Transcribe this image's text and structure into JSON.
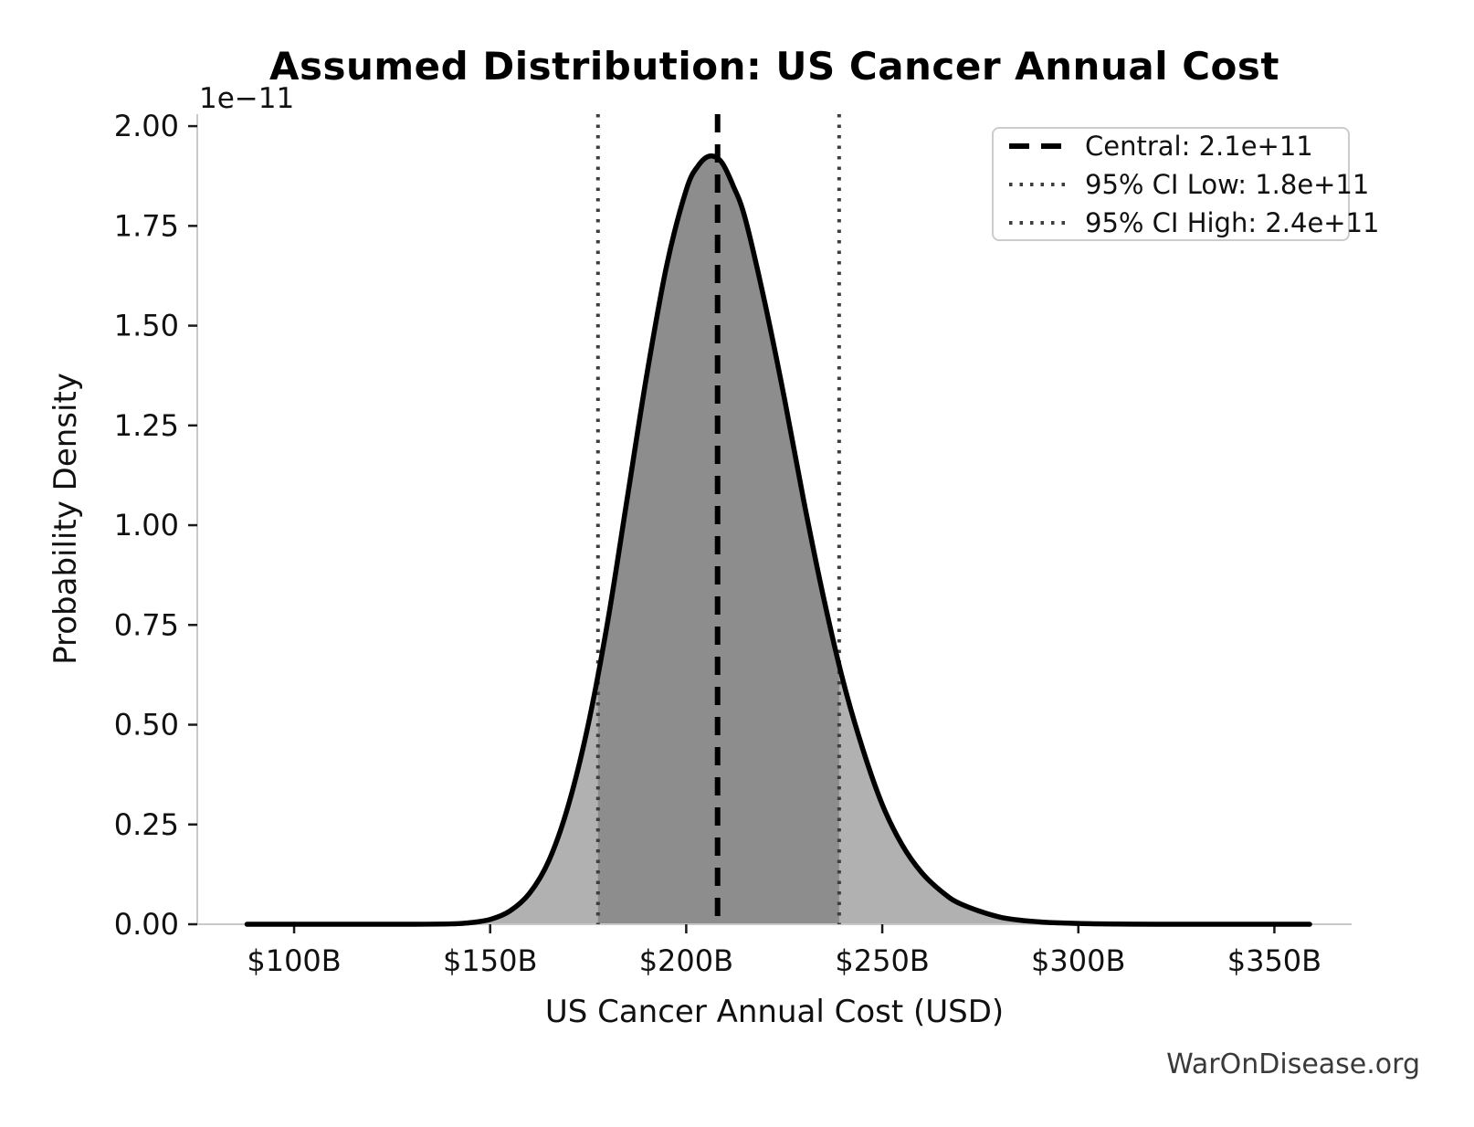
{
  "title": "Assumed Distribution: US Cancer Annual Cost",
  "watermark": "WarOnDisease.org",
  "axes": {
    "x_label": "US Cancer Annual Cost (USD)",
    "y_label": "Probability Density",
    "y_offset_text": "1e−11",
    "x_ticks": [
      {
        "billions": 100,
        "label": "$100B"
      },
      {
        "billions": 150,
        "label": "$150B"
      },
      {
        "billions": 200,
        "label": "$200B"
      },
      {
        "billions": 250,
        "label": "$250B"
      },
      {
        "billions": 300,
        "label": "$300B"
      },
      {
        "billions": 350,
        "label": "$350B"
      }
    ],
    "y_ticks": [
      {
        "value": 0.0,
        "label": "0.00"
      },
      {
        "value": 0.25,
        "label": "0.25"
      },
      {
        "value": 0.5,
        "label": "0.50"
      },
      {
        "value": 0.75,
        "label": "0.75"
      },
      {
        "value": 1.0,
        "label": "1.00"
      },
      {
        "value": 1.25,
        "label": "1.25"
      },
      {
        "value": 1.5,
        "label": "1.50"
      },
      {
        "value": 1.75,
        "label": "1.75"
      },
      {
        "value": 2.0,
        "label": "2.00"
      }
    ]
  },
  "chart_data": {
    "type": "area",
    "title": "Assumed Distribution: US Cancer Annual Cost",
    "xlabel": "US Cancer Annual Cost (USD)",
    "ylabel": "Probability Density",
    "y_scale_offset": "1e−11",
    "grid": false,
    "legend_position": "upper right",
    "xlim_billions": [
      75.3,
      369.7
    ],
    "ylim_1e11": [
      0,
      2.03
    ],
    "peak": {
      "x_billions": 206,
      "density_1e11": 1.93
    },
    "curve": {
      "x_billions": [
        88,
        100,
        110,
        120,
        130,
        140,
        145,
        150,
        155,
        160,
        165,
        170,
        175,
        180,
        185,
        190,
        195,
        200,
        203,
        206,
        209,
        212,
        215,
        220,
        225,
        230,
        235,
        240,
        245,
        250,
        255,
        260,
        265,
        270,
        280,
        290,
        300,
        310,
        320,
        340,
        359
      ],
      "density_1e11": [
        0,
        0,
        0,
        0,
        0,
        0.001,
        0.004,
        0.012,
        0.033,
        0.077,
        0.16,
        0.3,
        0.5,
        0.76,
        1.07,
        1.38,
        1.65,
        1.84,
        1.9,
        1.925,
        1.91,
        1.85,
        1.77,
        1.56,
        1.32,
        1.06,
        0.82,
        0.61,
        0.44,
        0.3,
        0.2,
        0.13,
        0.083,
        0.051,
        0.018,
        0.006,
        0.002,
        0.0005,
        0.0001,
        0,
        0
      ]
    },
    "central": {
      "label": "Central: 2.1e+11",
      "value_billions": 208,
      "style": "dashed"
    },
    "ci_low": {
      "label": "95% CI Low: 1.8e+11",
      "value_billions": 177.5,
      "style": "dotted"
    },
    "ci_high": {
      "label": "95% CI High: 2.4e+11",
      "value_billions": 239,
      "style": "dotted"
    },
    "colors": {
      "curve": "#000000",
      "fill_tails": "#b1b1b1",
      "fill_ci": "#8d8d8d",
      "central_line": "#000000",
      "ci_lines": "#3d3d3d",
      "spine": "#c9c9c9",
      "tick": "#1a1a1a",
      "text": "#111111",
      "watermark": "#3a3a3a",
      "legend_border": "#cccccc"
    }
  }
}
